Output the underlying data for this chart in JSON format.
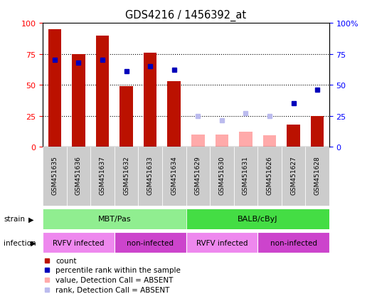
{
  "title": "GDS4216 / 1456392_at",
  "samples": [
    "GSM451635",
    "GSM451636",
    "GSM451637",
    "GSM451632",
    "GSM451633",
    "GSM451634",
    "GSM451629",
    "GSM451630",
    "GSM451631",
    "GSM451626",
    "GSM451627",
    "GSM451628"
  ],
  "count_values": [
    95,
    75,
    90,
    49,
    76,
    53,
    0,
    0,
    0,
    0,
    18,
    25
  ],
  "rank_values": [
    70,
    68,
    70,
    61,
    65,
    62,
    0,
    0,
    0,
    0,
    35,
    46
  ],
  "absent_count_values": [
    0,
    0,
    0,
    0,
    0,
    0,
    10,
    10,
    12,
    9,
    0,
    0
  ],
  "absent_rank_values": [
    0,
    0,
    0,
    0,
    0,
    0,
    25,
    21,
    27,
    25,
    0,
    0
  ],
  "count_present": [
    true,
    true,
    true,
    true,
    true,
    true,
    false,
    false,
    false,
    false,
    true,
    true
  ],
  "rank_present": [
    true,
    true,
    true,
    true,
    true,
    true,
    false,
    false,
    false,
    false,
    true,
    true
  ],
  "strain_groups": [
    {
      "label": "MBT/Pas",
      "start": 0,
      "end": 6,
      "color": "#90EE90"
    },
    {
      "label": "BALB/cByJ",
      "start": 6,
      "end": 12,
      "color": "#44DD44"
    }
  ],
  "infection_groups": [
    {
      "label": "RVFV infected",
      "start": 0,
      "end": 3,
      "color": "#EE88EE"
    },
    {
      "label": "non-infected",
      "start": 3,
      "end": 6,
      "color": "#CC44CC"
    },
    {
      "label": "RVFV infected",
      "start": 6,
      "end": 9,
      "color": "#EE88EE"
    },
    {
      "label": "non-infected",
      "start": 9,
      "end": 12,
      "color": "#CC44CC"
    }
  ],
  "ylim": [
    0,
    100
  ],
  "yticks": [
    0,
    25,
    50,
    75,
    100
  ],
  "bar_color": "#BB1100",
  "rank_color": "#0000BB",
  "absent_bar_color": "#FFAAAA",
  "absent_rank_color": "#BBBBEE",
  "bg_color": "#FFFFFF"
}
